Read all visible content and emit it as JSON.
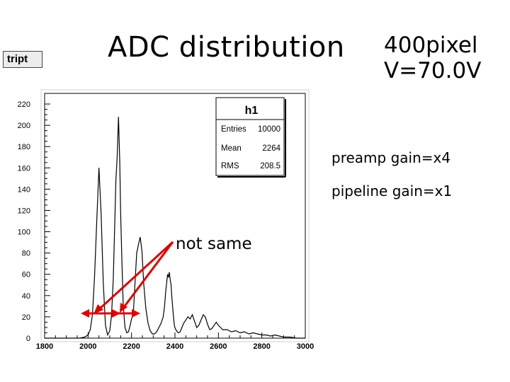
{
  "canvas_tag": "tript",
  "slide": {
    "title": "ADC distribution",
    "subtitle_line1": "400pixel",
    "subtitle_line2": "V=70.0V",
    "note1": "preamp gain=x4",
    "note2": "pipeline gain=x1",
    "annotation": "not same",
    "annotation_color": "#e00000"
  },
  "stats_box": {
    "name": "h1",
    "rows": [
      {
        "label": "Entries",
        "value": "10000"
      },
      {
        "label": "Mean",
        "value": "2264"
      },
      {
        "label": "RMS",
        "value": "208.5"
      }
    ]
  },
  "chart_data": {
    "type": "line",
    "title": "h1",
    "xlim": [
      1800,
      3000
    ],
    "ylim": [
      0,
      230
    ],
    "xticks": [
      1800,
      2000,
      2200,
      2400,
      2600,
      2800,
      3000
    ],
    "yticks": [
      0,
      20,
      40,
      60,
      80,
      100,
      120,
      140,
      160,
      180,
      200,
      220
    ],
    "x": [
      1800,
      1960,
      1985,
      2000,
      2010,
      2020,
      2030,
      2040,
      2050,
      2060,
      2070,
      2080,
      2090,
      2100,
      2108,
      2116,
      2122,
      2128,
      2134,
      2140,
      2146,
      2150,
      2156,
      2162,
      2170,
      2178,
      2186,
      2194,
      2200,
      2208,
      2216,
      2224,
      2232,
      2240,
      2248,
      2256,
      2266,
      2276,
      2286,
      2296,
      2306,
      2316,
      2326,
      2336,
      2346,
      2352,
      2358,
      2362,
      2366,
      2370,
      2374,
      2378,
      2382,
      2386,
      2390,
      2394,
      2398,
      2404,
      2410,
      2416,
      2424,
      2432,
      2440,
      2450,
      2460,
      2470,
      2480,
      2490,
      2500,
      2510,
      2520,
      2530,
      2540,
      2550,
      2560,
      2570,
      2580,
      2590,
      2600,
      2610,
      2620,
      2640,
      2660,
      2680,
      2700,
      2720,
      2740,
      2760,
      2780,
      2800,
      2820,
      2840,
      2860,
      2880,
      2900,
      2930,
      2960,
      3000
    ],
    "y": [
      0,
      0,
      1,
      3,
      8,
      22,
      58,
      110,
      160,
      118,
      52,
      12,
      3,
      7,
      22,
      55,
      100,
      148,
      170,
      208,
      165,
      118,
      70,
      30,
      10,
      5,
      6,
      12,
      18,
      22,
      52,
      80,
      88,
      95,
      82,
      52,
      28,
      14,
      7,
      4,
      4,
      6,
      10,
      14,
      20,
      30,
      45,
      52,
      60,
      57,
      62,
      55,
      50,
      38,
      28,
      18,
      11,
      8,
      6,
      5,
      6,
      10,
      14,
      17,
      20,
      18,
      22,
      16,
      10,
      12,
      17,
      22,
      20,
      13,
      8,
      9,
      12,
      15,
      12,
      10,
      8,
      8,
      6,
      7,
      5,
      6,
      4,
      5,
      4,
      3,
      3,
      2,
      3,
      2,
      1,
      1,
      0,
      0
    ],
    "curve_color": "#000000",
    "arrow_color": "#e00000",
    "grid": false,
    "legend": "top-right stats box"
  }
}
